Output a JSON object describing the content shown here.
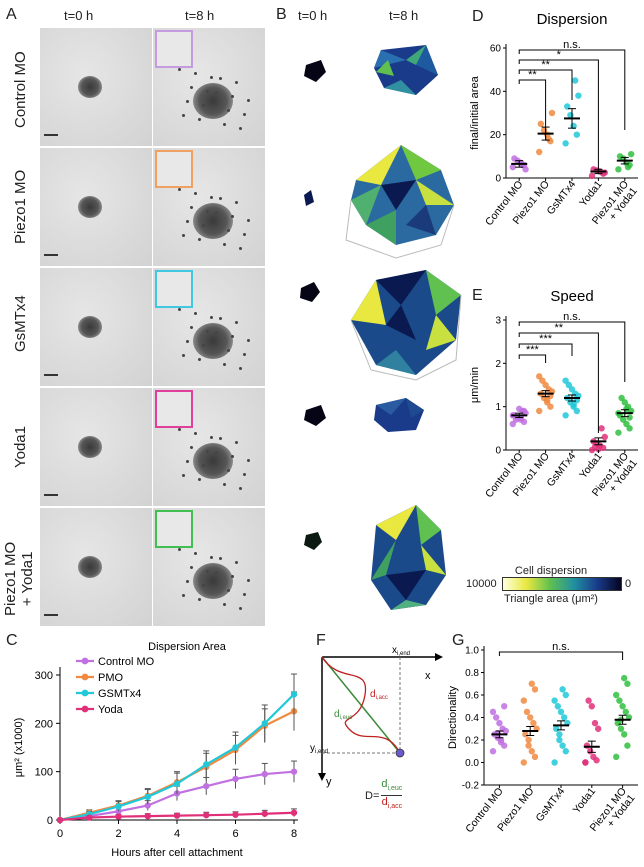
{
  "panels": {
    "A": {
      "letter": "A",
      "col_headers": [
        "t=0 h",
        "t=8 h"
      ],
      "rows": [
        {
          "label": "Control MO",
          "inset_color": "#c59be0"
        },
        {
          "label": "Piezo1 MO",
          "inset_color": "#f0a060"
        },
        {
          "label": "GsMTx4",
          "inset_color": "#40c8e0"
        },
        {
          "label": "Yoda1",
          "inset_color": "#e0409a"
        },
        {
          "label": "Piezo1 MO\n+ Yoda1",
          "label_l1": "Piezo1 MO",
          "label_l2": "+ Yoda1",
          "inset_color": "#40c050"
        }
      ]
    },
    "B": {
      "letter": "B",
      "col_headers": [
        "t=0 h",
        "t=8 h"
      ],
      "colorbar": {
        "title": "Cell dispersion",
        "left_tick": "10000",
        "right_tick": "0",
        "subtitle": "Triangle area (μm²)"
      }
    },
    "C": {
      "letter": "C"
    },
    "D": {
      "letter": "D"
    },
    "E": {
      "letter": "E"
    },
    "F": {
      "letter": "F",
      "labels": {
        "x": "x",
        "y": "y",
        "xend": "x",
        "xend_sub": "i,end",
        "yend": "y",
        "yend_sub": "i,end",
        "deuc": "d",
        "deuc_sub": "i,euc",
        "dacc": "d",
        "dacc_sub": "i,acc",
        "formula_lhs": "D=",
        "formula_num": "d",
        "formula_num_sub": "i,euc",
        "formula_den": "d",
        "formula_den_sub": "i,acc"
      }
    },
    "G": {
      "letter": "G"
    }
  },
  "colors": {
    "control": "#c070e0",
    "piezo": "#f08a40",
    "gsmtx": "#20c8d8",
    "yoda": "#e0307a",
    "piezo_yoda": "#30c040"
  },
  "chart_data": [
    {
      "id": "C",
      "type": "line",
      "title": "Dispersion Area",
      "xlabel": "Hours after cell attachment",
      "ylabel": "μm² (x1000)",
      "xlim": [
        0,
        8
      ],
      "ylim": [
        0,
        300
      ],
      "xticks": [
        0,
        2,
        4,
        6,
        8
      ],
      "yticks": [
        0,
        100,
        200,
        300
      ],
      "legend_position": "top-left",
      "series": [
        {
          "name": "Control MO",
          "color_key": "control",
          "x": [
            0,
            1,
            2,
            3,
            4,
            5,
            6,
            7,
            8
          ],
          "y": [
            0,
            8,
            18,
            30,
            55,
            70,
            85,
            95,
            100
          ],
          "err": [
            0,
            5,
            8,
            10,
            15,
            18,
            20,
            22,
            22
          ]
        },
        {
          "name": "PMO",
          "color_key": "piezo",
          "x": [
            0,
            1,
            2,
            3,
            4,
            5,
            6,
            7,
            8
          ],
          "y": [
            0,
            15,
            30,
            50,
            78,
            110,
            145,
            195,
            225
          ],
          "err": [
            0,
            6,
            10,
            15,
            22,
            28,
            30,
            35,
            40
          ]
        },
        {
          "name": "GSMTx4",
          "color_key": "gsmtx",
          "x": [
            0,
            1,
            2,
            3,
            4,
            5,
            6,
            7,
            8
          ],
          "y": [
            0,
            12,
            28,
            48,
            75,
            115,
            150,
            200,
            260
          ],
          "err": [
            0,
            6,
            10,
            15,
            22,
            28,
            32,
            38,
            42
          ]
        },
        {
          "name": "Yoda",
          "color_key": "yoda",
          "x": [
            0,
            1,
            2,
            3,
            4,
            5,
            6,
            7,
            8
          ],
          "y": [
            0,
            5,
            7,
            8,
            9,
            10,
            11,
            13,
            15
          ],
          "err": [
            0,
            3,
            4,
            5,
            5,
            6,
            6,
            7,
            8
          ]
        }
      ]
    },
    {
      "id": "D",
      "type": "scatter",
      "title": "Dispersion",
      "ylabel": "final/initial area",
      "ylim": [
        0,
        60
      ],
      "yticks": [
        0,
        20,
        40,
        60
      ],
      "categories": [
        "Control MO",
        "Piezo1 MO",
        "GsMTx4",
        "Yoda1",
        "Piezo1 MO\n+ Yoda1"
      ],
      "color_keys": [
        "control",
        "piezo",
        "gsmtx",
        "yoda",
        "piezo_yoda"
      ],
      "means": [
        6.5,
        20.5,
        27.5,
        3,
        8
      ],
      "sems": [
        1.5,
        3,
        4.5,
        1,
        1.5
      ],
      "points": [
        [
          5,
          6,
          7,
          8,
          9,
          4,
          6
        ],
        [
          12,
          17,
          20,
          22,
          25,
          30,
          18
        ],
        [
          16,
          20,
          24,
          29,
          33,
          38,
          45
        ],
        [
          1,
          2,
          3,
          3.5,
          4,
          2.5
        ],
        [
          4,
          6,
          7,
          9,
          10,
          11,
          5
        ]
      ],
      "significance": [
        {
          "from": 0,
          "to": 4,
          "label": "n.s."
        },
        {
          "from": 0,
          "to": 3,
          "label": "*"
        },
        {
          "from": 0,
          "to": 2,
          "label": "**"
        },
        {
          "from": 0,
          "to": 1,
          "label": "**"
        }
      ]
    },
    {
      "id": "E",
      "type": "scatter",
      "title": "Speed",
      "ylabel": "μm/min",
      "ylim": [
        0,
        3
      ],
      "yticks": [
        0,
        1,
        2,
        3
      ],
      "categories": [
        "Control MO",
        "Piezo1 MO",
        "GsMTx4",
        "Yoda1",
        "Piezo1 MO\n+ Yoda1"
      ],
      "color_keys": [
        "control",
        "piezo",
        "gsmtx",
        "yoda",
        "piezo_yoda"
      ],
      "means": [
        0.8,
        1.3,
        1.2,
        0.2,
        0.85
      ],
      "sems": [
        0.05,
        0.07,
        0.07,
        0.08,
        0.08
      ],
      "points": [
        [
          0.6,
          0.65,
          0.7,
          0.75,
          0.8,
          0.85,
          0.9,
          0.95,
          0.7,
          0.8,
          0.9,
          0.75
        ],
        [
          0.9,
          1.0,
          1.1,
          1.2,
          1.3,
          1.35,
          1.4,
          1.5,
          1.6,
          1.7,
          1.25,
          1.15
        ],
        [
          0.8,
          0.9,
          1.0,
          1.1,
          1.2,
          1.25,
          1.3,
          1.4,
          1.5,
          1.6,
          1.15,
          1.05
        ],
        [
          0.0,
          0.05,
          0.1,
          0.15,
          0.2,
          0.3,
          0.5,
          0.02,
          0.08
        ],
        [
          0.4,
          0.5,
          0.6,
          0.7,
          0.8,
          0.9,
          1.0,
          1.1,
          1.2,
          0.85,
          0.75,
          0.95
        ]
      ],
      "significance": [
        {
          "from": 0,
          "to": 4,
          "label": "n.s."
        },
        {
          "from": 0,
          "to": 3,
          "label": "**"
        },
        {
          "from": 0,
          "to": 2,
          "label": "***"
        },
        {
          "from": 0,
          "to": 1,
          "label": "***"
        }
      ]
    },
    {
      "id": "G",
      "type": "scatter",
      "ylabel": "Directionality",
      "ylim": [
        -0.2,
        1.0
      ],
      "yticks": [
        -0.2,
        0.0,
        0.2,
        0.4,
        0.6,
        0.8,
        1.0
      ],
      "ytick_labels": [
        "-0.2",
        "0.0",
        "0.2",
        "0.4",
        "0.6",
        "0.8",
        "1.0"
      ],
      "categories": [
        "Control MO",
        "Piezo1 MO",
        "GsMTx4",
        "Yoda1",
        "Piezo1 MO\n+ Yoda1"
      ],
      "color_keys": [
        "control",
        "piezo",
        "gsmtx",
        "yoda",
        "piezo_yoda"
      ],
      "means": [
        0.25,
        0.28,
        0.33,
        0.14,
        0.38
      ],
      "sems": [
        0.03,
        0.04,
        0.04,
        0.05,
        0.04
      ],
      "points": [
        [
          0.1,
          0.15,
          0.2,
          0.22,
          0.25,
          0.28,
          0.3,
          0.35,
          0.4,
          0.45,
          0.5,
          0.18,
          0.26
        ],
        [
          0.0,
          0.05,
          0.1,
          0.2,
          0.25,
          0.3,
          0.35,
          0.4,
          0.45,
          0.55,
          0.65,
          0.7,
          0.15
        ],
        [
          0.0,
          0.1,
          0.15,
          0.2,
          0.3,
          0.35,
          0.4,
          0.45,
          0.5,
          0.55,
          0.6,
          0.65,
          0.25
        ],
        [
          0.0,
          0.02,
          0.05,
          0.1,
          0.15,
          0.3,
          0.35,
          0.5,
          0.55,
          0.0
        ],
        [
          0.05,
          0.15,
          0.25,
          0.3,
          0.35,
          0.4,
          0.45,
          0.5,
          0.55,
          0.6,
          0.7,
          0.75,
          0.38
        ]
      ],
      "significance": [
        {
          "from": 0,
          "to": 4,
          "label": "n.s."
        }
      ]
    }
  ]
}
